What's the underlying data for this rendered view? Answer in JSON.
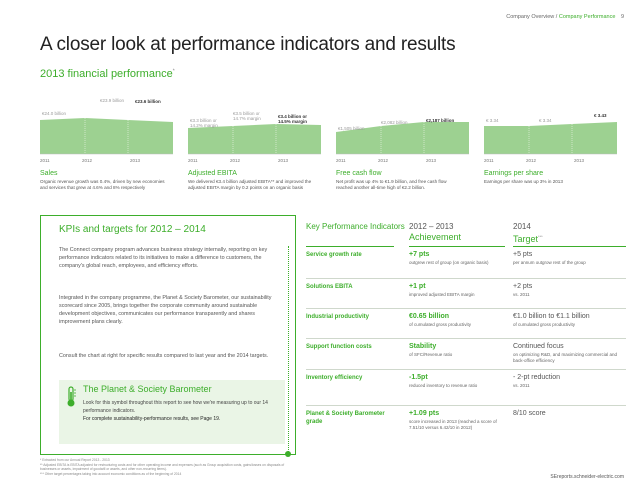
{
  "header": {
    "section": "Company Overview",
    "separator": " / ",
    "page_name": "Company Performance",
    "page_number": "9"
  },
  "title": "A closer look at performance indicators and results",
  "subtitle": "2013 financial performance",
  "subtitle_mark": "*",
  "colors": {
    "green": "#3dae2b",
    "light_green": "#8cc97e",
    "pale_green": "#eaf5e6"
  },
  "metrics": [
    {
      "title": "Sales",
      "desc": "Organic revenue growth was 0.4%, driven by new economies and services that grew at 4.6% and 8% respectively",
      "labels": [
        "€24.0 billion",
        "€23.9 billion",
        "€23.6 billion"
      ],
      "years": [
        "2011",
        "2012",
        "2013"
      ]
    },
    {
      "title": "Adjusted EBITA",
      "desc": "We delivered €3.4 billion adjusted EBITA** and improved the adjusted EBITA margin by 0.2 points on an organic basis",
      "labels": [
        "€3.3 billion or 14.2% margin",
        "€3.5 billion or 14.7% margin",
        "€3.4 billion or 14.5% margin"
      ],
      "years": [
        "2011",
        "2012",
        "2013"
      ]
    },
    {
      "title": "Free cash flow",
      "desc": "Net profit was up 4% to €1.9 billion, and free cash flow reached another all-time high of €2.2 billion.",
      "labels": [
        "€1,505 billion",
        "€2,082 billion",
        "€2,187 billion"
      ],
      "years": [
        "2011",
        "2012",
        "2013"
      ]
    },
    {
      "title": "Earnings per share",
      "desc": "Earnings per share was up 3% in 2013",
      "labels": [
        "€ 3.34",
        "€ 3.34",
        "€ 3.43"
      ],
      "years": [
        "2011",
        "2012",
        "2013"
      ]
    }
  ],
  "kpi_box": {
    "title": "KPIs and targets for 2012 – 2014",
    "para1": "The Connect company program advances business strategy internally, reporting on key performance indicators related to its initiatives to make a difference to customers, the company's global reach, employees, and efficiency efforts.",
    "para2": "Integrated in the company programme, the Planet & Society Barometer, our sustainability scorecard since 2005, brings together the corporate community around sustainable development objectives, communicates our performance transparently and shares improvement plans clearly.",
    "para3": "Consult the chart at right for specific results compared to last year and the 2014 targets.",
    "barometer": {
      "title": "The Planet & Society Barometer",
      "desc1": "Look for this symbol throughout this report to see how we're measuring up to our 14 performance indicators.",
      "desc2": "For complete sustainability-performance results, see Page 19."
    }
  },
  "footnotes": [
    "* Extracted from our Annual Report 2013 - 2013",
    "** Adjusted EBITA is EBITA adjusted for restructuring costs and for other operating income and expenses (such as Group acquisition costs, gains/losses on disposals of businesses or assets, impairment of goodwill or assets, and other non-recurring items).",
    "*** Other target percentages taking into account economic conditions as of the beginning of 2014"
  ],
  "url": "SEreports.schneider-electric.com",
  "table": {
    "headers": {
      "kpi": "Key Performance Indicators",
      "achievement_years": "2012 – 2013",
      "achievement": "Achievement",
      "target_year": "2014",
      "target": "Target",
      "target_mark": "***"
    },
    "rows": [
      {
        "kpi": "Service growth rate",
        "ach_big": "+7 pts",
        "ach_small": "outgrew rest of group (on organic basis)",
        "tgt_big": "+5 pts",
        "tgt_small": "per annum outgrow rest of the group"
      },
      {
        "kpi": "Solutions EBITA",
        "ach_big": "+1 pt",
        "ach_small": "improved adjusted EBITA margin",
        "tgt_big": "+2 pts",
        "tgt_small": "vs. 2011"
      },
      {
        "kpi": "Industrial productivity",
        "ach_big": "€0.65 billion",
        "ach_small": "of cumulated gross productivity",
        "tgt_big": "€1.0 billion to €1.1 billion",
        "tgt_small": "of cumulated gross productivity"
      },
      {
        "kpi": "Support function costs",
        "ach_big": "Stability",
        "ach_small": "of SFC/Revenue ratio",
        "tgt_big": "Continued focus",
        "tgt_small": "on optimizing R&D, and maximizing commercial and back-office efficiency"
      },
      {
        "kpi": "Inventory efficiency",
        "ach_big": "-1.5pt",
        "ach_small": "reduced inventory to revenue ratio",
        "tgt_big": "- 2-pt reduction",
        "tgt_small": "vs. 2011"
      },
      {
        "kpi": "Planet & Society Barometer grade",
        "ach_big": "+1.09 pts",
        "ach_small": "score increased in 2013 (reached a score of 7.51/10 versus 6.42/10 in 2012)",
        "tgt_big": "8/10 score",
        "tgt_small": ""
      }
    ]
  }
}
